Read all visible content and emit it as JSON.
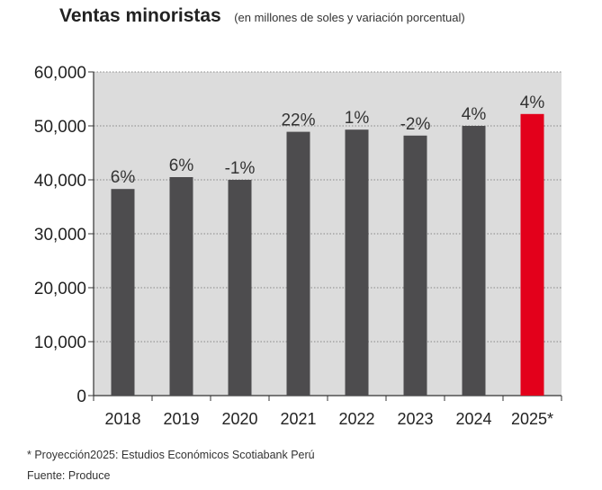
{
  "header": {
    "title": "Ventas minoristas",
    "subtitle": "(en millones de soles y variación porcentual)"
  },
  "colors": {
    "bar": "#4d4c4e",
    "highlight": "#e3001b",
    "plot_bg": "#dcdcdc",
    "grid": "#888888",
    "axis": "#333333"
  },
  "chart_data": {
    "type": "bar",
    "title": "Ventas minoristas",
    "subtitle": "(en millones de soles y variación porcentual)",
    "xlabel": "",
    "ylabel": "",
    "categories": [
      "2018",
      "2019",
      "2020",
      "2021",
      "2022",
      "2023",
      "2024",
      "2025*"
    ],
    "values": [
      38300,
      40500,
      40000,
      48900,
      49300,
      48200,
      50000,
      52200
    ],
    "data_labels": [
      "6%",
      "6%",
      "-1%",
      "22%",
      "1%",
      "-2%",
      "4%",
      "4%"
    ],
    "highlight_index": 7,
    "ylim": [
      0,
      60000
    ],
    "yticks": [
      0,
      10000,
      20000,
      30000,
      40000,
      50000,
      60000
    ],
    "ytick_labels": [
      "0",
      "10,000",
      "20,000",
      "30,000",
      "40,000",
      "50,000",
      "60,000"
    ],
    "grid": true,
    "legend": "none"
  },
  "footer": {
    "note": "* Proyección2025: Estudios Económicos Scotiabank Perú",
    "source": "Fuente: Produce"
  }
}
